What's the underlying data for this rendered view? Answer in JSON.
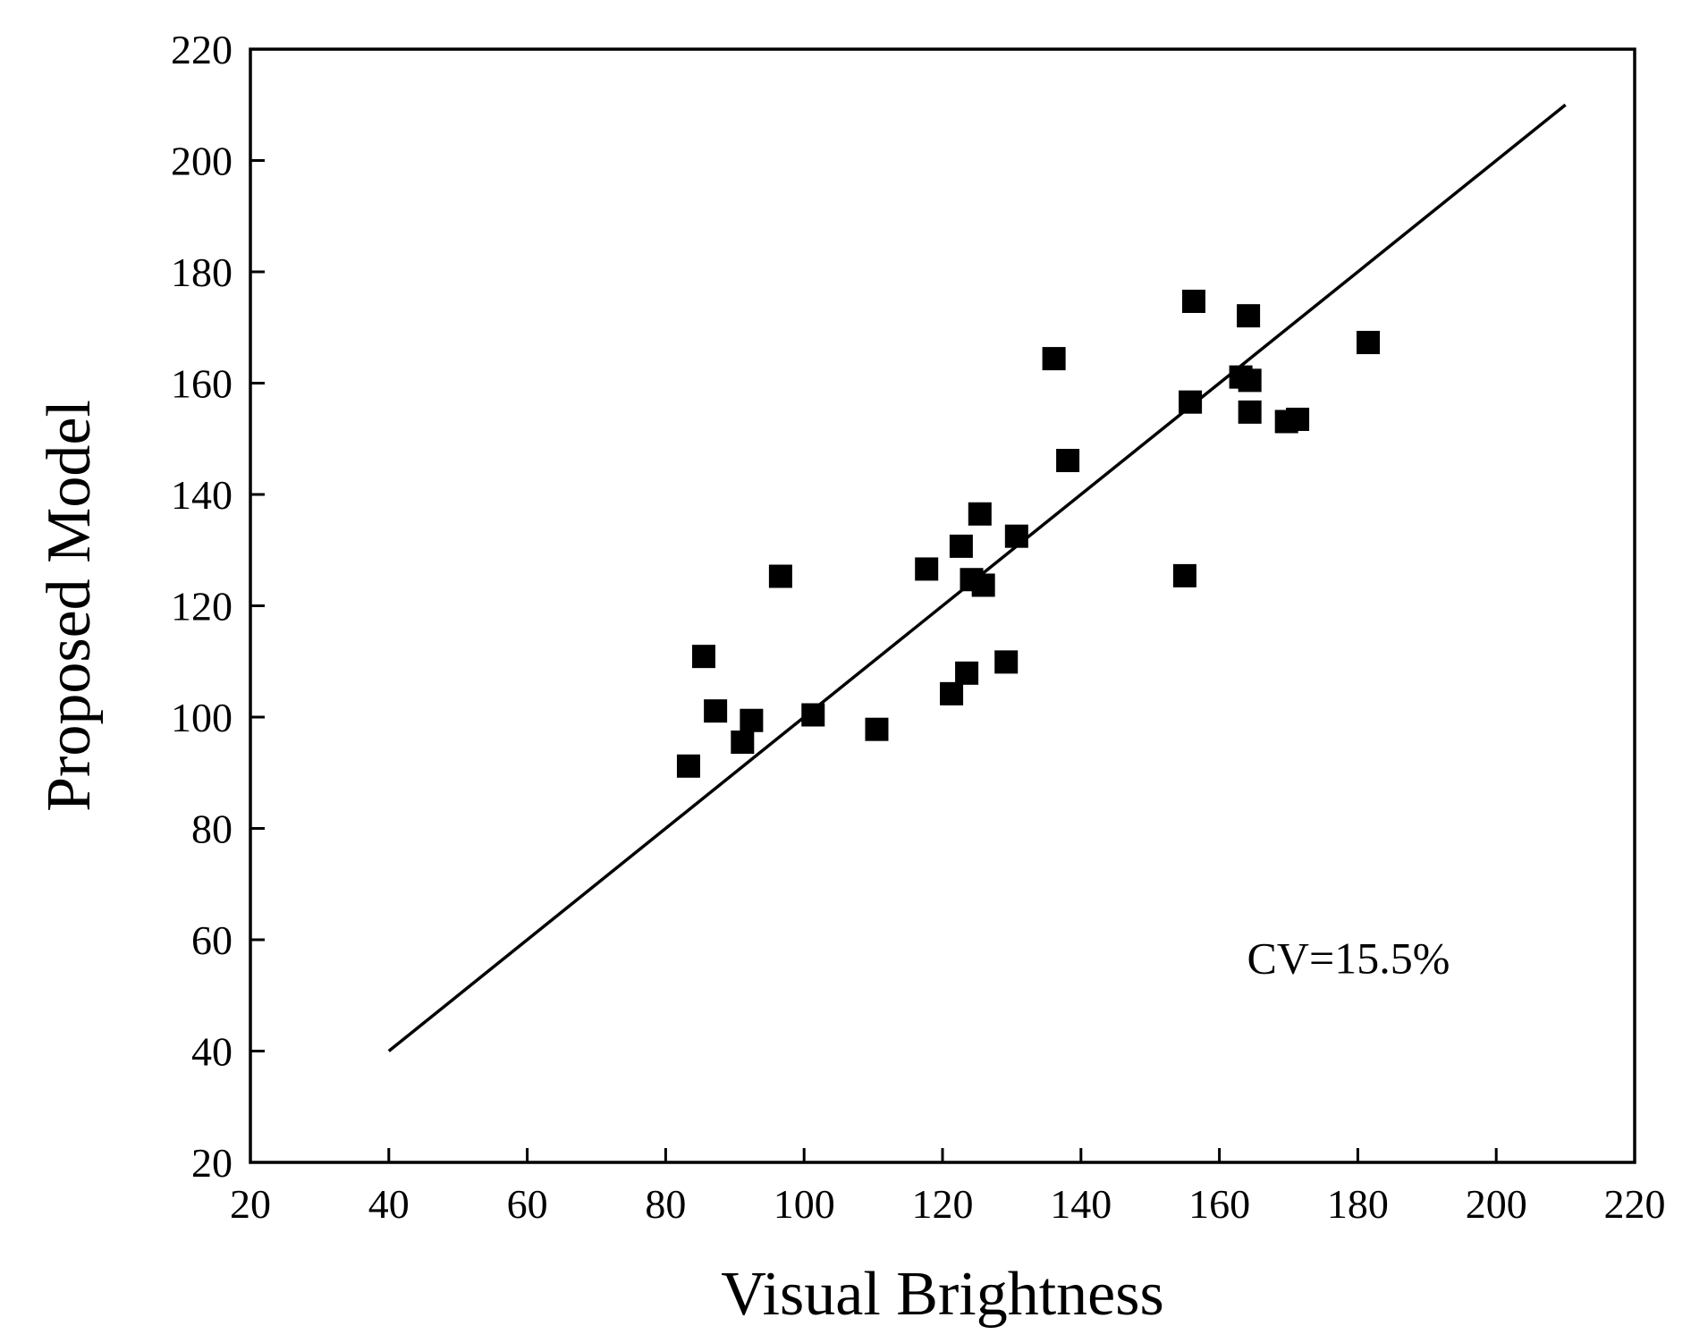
{
  "chart_data": {
    "type": "scatter",
    "title": "",
    "xlabel": "Visual Brightness",
    "ylabel": "Proposed Model",
    "xlim": [
      20,
      220
    ],
    "ylim": [
      20,
      220
    ],
    "xticks": [
      20,
      40,
      60,
      80,
      100,
      120,
      140,
      160,
      180,
      200,
      220
    ],
    "yticks": [
      20,
      40,
      60,
      80,
      100,
      120,
      140,
      160,
      180,
      200,
      220
    ],
    "grid": false,
    "marker": "square",
    "marker_color": "#000000",
    "annotation": "CV=15.5%",
    "reference_line": {
      "x": [
        40,
        210
      ],
      "y": [
        40,
        210
      ]
    },
    "points": [
      [
        83.3,
        91.2
      ],
      [
        85.5,
        110.9
      ],
      [
        87.2,
        101.1
      ],
      [
        91.1,
        95.5
      ],
      [
        92.4,
        99.4
      ],
      [
        96.6,
        125.3
      ],
      [
        101.3,
        100.4
      ],
      [
        110.5,
        97.8
      ],
      [
        117.7,
        126.6
      ],
      [
        121.3,
        104.2
      ],
      [
        122.7,
        130.7
      ],
      [
        123.5,
        107.9
      ],
      [
        124.2,
        124.7
      ],
      [
        125.4,
        136.5
      ],
      [
        125.9,
        123.7
      ],
      [
        129.2,
        109.9
      ],
      [
        130.7,
        132.5
      ],
      [
        136.1,
        164.4
      ],
      [
        138.1,
        146.1
      ],
      [
        155.0,
        125.4
      ],
      [
        155.8,
        156.6
      ],
      [
        156.3,
        174.7
      ],
      [
        163.1,
        161.1
      ],
      [
        164.2,
        172.1
      ],
      [
        164.4,
        160.5
      ],
      [
        164.4,
        154.8
      ],
      [
        169.7,
        153.1
      ],
      [
        171.3,
        153.5
      ],
      [
        181.5,
        167.3
      ]
    ]
  }
}
